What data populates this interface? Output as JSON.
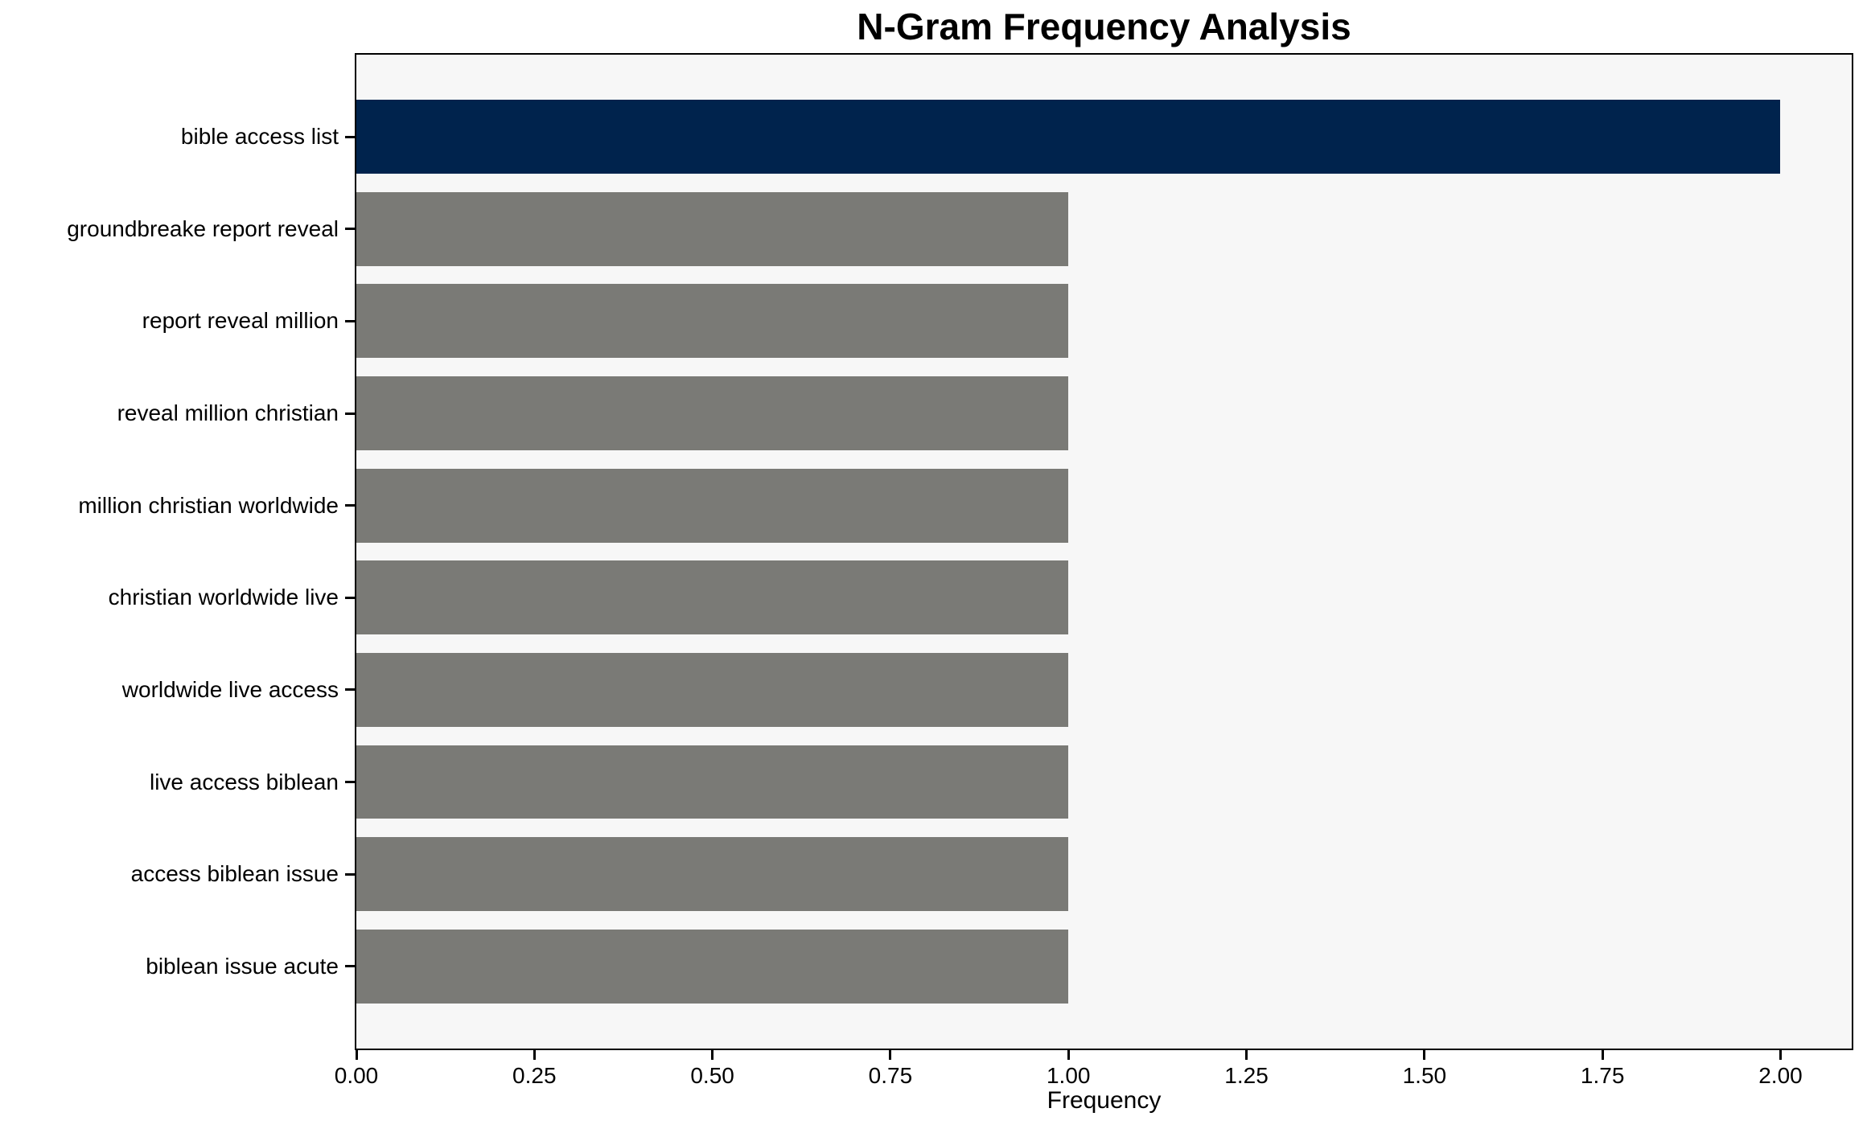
{
  "chart_data": {
    "type": "bar",
    "orientation": "horizontal",
    "title": "N-Gram Frequency Analysis",
    "xlabel": "Frequency",
    "ylabel": "",
    "categories": [
      "bible access list",
      "groundbreake report reveal",
      "report reveal million",
      "reveal million christian",
      "million christian worldwide",
      "christian worldwide live",
      "worldwide live access",
      "live access biblean",
      "access biblean issue",
      "biblean issue acute"
    ],
    "values": [
      2,
      1,
      1,
      1,
      1,
      1,
      1,
      1,
      1,
      1
    ],
    "bar_colors": [
      "#00234d",
      "#7a7a76",
      "#7a7a76",
      "#7a7a76",
      "#7a7a76",
      "#7a7a76",
      "#7a7a76",
      "#7a7a76",
      "#7a7a76",
      "#7a7a76"
    ],
    "xlim": [
      0,
      2.1
    ],
    "xticks": [
      {
        "value": 0.0,
        "label": "0.00"
      },
      {
        "value": 0.25,
        "label": "0.25"
      },
      {
        "value": 0.5,
        "label": "0.50"
      },
      {
        "value": 0.75,
        "label": "0.75"
      },
      {
        "value": 1.0,
        "label": "1.00"
      },
      {
        "value": 1.25,
        "label": "1.25"
      },
      {
        "value": 1.5,
        "label": "1.50"
      },
      {
        "value": 1.75,
        "label": "1.75"
      },
      {
        "value": 2.0,
        "label": "2.00"
      }
    ],
    "grid": false,
    "legend": null,
    "colors": {
      "highlight_bar": "#00234d",
      "default_bar": "#7a7a76",
      "plot_background": "#f7f7f7",
      "figure_background": "#ffffff",
      "spine": "#000000",
      "text": "#000000"
    }
  }
}
